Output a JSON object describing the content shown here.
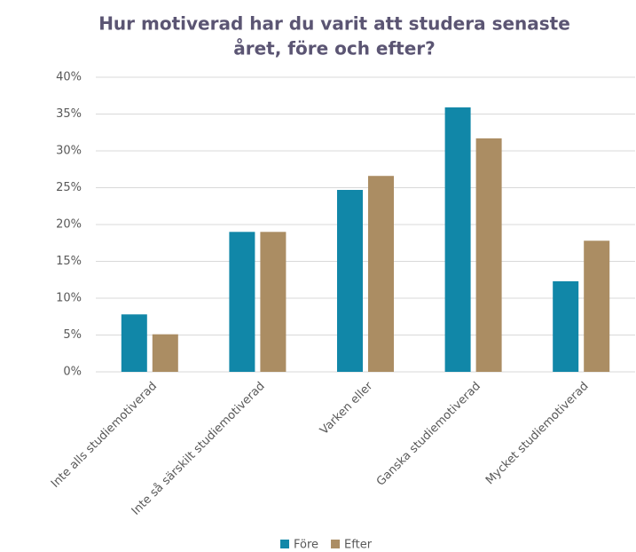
{
  "chart_data": {
    "type": "bar",
    "title": [
      "Hur motiverad har du varit att studera senaste",
      "året, före och efter?"
    ],
    "categories": [
      "Inte alls studiemotiverad",
      "Inte så särskilt studiemotiverad",
      "Varken eller",
      "Ganska studiemotiverad",
      "Mycket studiemotiverad"
    ],
    "series": [
      {
        "name": "Före",
        "color": "#1187a8",
        "values": [
          7.8,
          19,
          24.7,
          35.9,
          12.3
        ]
      },
      {
        "name": "Efter",
        "color": "#ab8d63",
        "values": [
          5.1,
          19,
          26.6,
          31.7,
          17.8
        ]
      }
    ],
    "ylim": [
      0,
      40
    ],
    "yticks": [
      {
        "value": 0,
        "label": "0%"
      },
      {
        "value": 5,
        "label": "5%"
      },
      {
        "value": 10,
        "label": "10%"
      },
      {
        "value": 15,
        "label": "15%"
      },
      {
        "value": 20,
        "label": "20%"
      },
      {
        "value": 25,
        "label": "25%"
      },
      {
        "value": 30,
        "label": "30%"
      },
      {
        "value": 35,
        "label": "35%"
      },
      {
        "value": 40,
        "label": "40%"
      }
    ],
    "grid": true,
    "legend": "bottom"
  }
}
